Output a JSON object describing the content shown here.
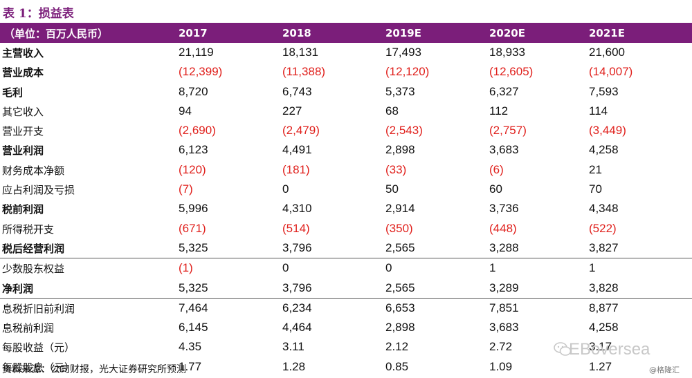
{
  "title": "表 1：损益表",
  "header": {
    "unit": "（单位：百万人民币）",
    "years": [
      "2017",
      "2018",
      "2019E",
      "2020E",
      "2021E"
    ]
  },
  "rows": [
    {
      "label": "主营收入",
      "bold": true,
      "values": [
        "21,119",
        "18,131",
        "17,493",
        "18,933",
        "21,600"
      ]
    },
    {
      "label": "营业成本",
      "bold": true,
      "values": [
        "(12,399)",
        "(11,388)",
        "(12,120)",
        "(12,605)",
        "(14,007)"
      ]
    },
    {
      "label": "毛利",
      "bold": true,
      "values": [
        "8,720",
        "6,743",
        "5,373",
        "6,327",
        "7,593"
      ]
    },
    {
      "label": "其它收入",
      "bold": false,
      "values": [
        "94",
        "227",
        "68",
        "112",
        "114"
      ]
    },
    {
      "label": "营业开支",
      "bold": false,
      "values": [
        "(2,690)",
        "(2,479)",
        "(2,543)",
        "(2,757)",
        "(3,449)"
      ]
    },
    {
      "label": "营业利润",
      "bold": true,
      "values": [
        "6,123",
        "4,491",
        "2,898",
        "3,683",
        "4,258"
      ]
    },
    {
      "label": "财务成本净额",
      "bold": false,
      "values": [
        "(120)",
        "(181)",
        "(33)",
        "(6)",
        "21"
      ]
    },
    {
      "label": "应占利润及亏损",
      "bold": false,
      "values": [
        "(7)",
        "0",
        "50",
        "60",
        "70"
      ]
    },
    {
      "label": "税前利润",
      "bold": true,
      "values": [
        "5,996",
        "4,310",
        "2,914",
        "3,736",
        "4,348"
      ]
    },
    {
      "label": "所得税开支",
      "bold": false,
      "values": [
        "(671)",
        "(514)",
        "(350)",
        "(448)",
        "(522)"
      ]
    },
    {
      "label": "税后经营利润",
      "bold": true,
      "values": [
        "5,325",
        "3,796",
        "2,565",
        "3,288",
        "3,827"
      ]
    },
    {
      "label": "少数股东权益",
      "bold": false,
      "values": [
        "(1)",
        "0",
        "0",
        "1",
        "1"
      ]
    },
    {
      "label": "净利润",
      "bold": true,
      "values": [
        "5,325",
        "3,796",
        "2,565",
        "3,289",
        "3,828"
      ]
    },
    {
      "label": "息税折旧前利润",
      "bold": false,
      "values": [
        "7,464",
        "6,234",
        "6,653",
        "7,851",
        "8,877"
      ]
    },
    {
      "label": "息税前利润",
      "bold": false,
      "values": [
        "6,145",
        "4,464",
        "2,898",
        "3,683",
        "4,258"
      ]
    },
    {
      "label": "每股收益（元）",
      "bold": false,
      "values": [
        "4.35",
        "3.11",
        "2.12",
        "2.72",
        "3.17"
      ]
    },
    {
      "label": "每股股息（元）",
      "bold": false,
      "values": [
        "1.77",
        "1.28",
        "0.85",
        "1.09",
        "1.27"
      ]
    }
  ],
  "source": "资料来源：公司财报，光大证券研究所预测",
  "watermark": "EBoversea",
  "copyright": "@格隆汇",
  "colors": {
    "accent": "#7B1E7A",
    "negative": "#E0201C"
  }
}
